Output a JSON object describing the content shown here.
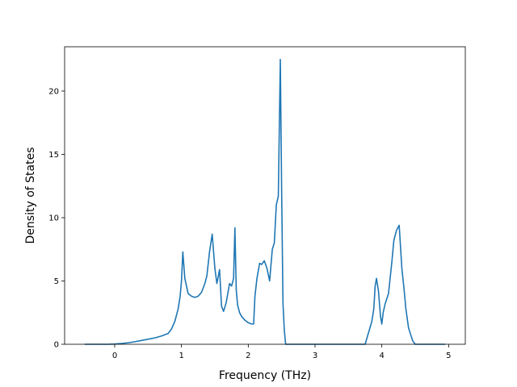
{
  "chart_data": {
    "type": "line",
    "title": "",
    "xlabel": "Frequency (THz)",
    "ylabel": "Density of States",
    "xlim": [
      -0.75,
      5.25
    ],
    "ylim": [
      0,
      23.5
    ],
    "grid": false,
    "legend": "none",
    "xticks": [
      0,
      1,
      2,
      3,
      4,
      5
    ],
    "yticks": [
      0,
      5,
      10,
      15,
      20
    ],
    "xtick_labels": [
      "0",
      "1",
      "2",
      "3",
      "4",
      "5"
    ],
    "ytick_labels": [
      "0",
      "5",
      "10",
      "15",
      "20"
    ],
    "series": [
      {
        "color": "#1f77b4",
        "x": [
          -0.45,
          -0.3,
          -0.1,
          0.0,
          0.1,
          0.2,
          0.3,
          0.4,
          0.5,
          0.6,
          0.7,
          0.8,
          0.85,
          0.9,
          0.95,
          0.98,
          1.0,
          1.02,
          1.05,
          1.1,
          1.15,
          1.2,
          1.25,
          1.3,
          1.35,
          1.38,
          1.42,
          1.46,
          1.5,
          1.53,
          1.57,
          1.6,
          1.63,
          1.67,
          1.72,
          1.75,
          1.78,
          1.8,
          1.82,
          1.84,
          1.87,
          1.9,
          1.95,
          2.0,
          2.05,
          2.08,
          2.1,
          2.13,
          2.17,
          2.2,
          2.24,
          2.28,
          2.32,
          2.36,
          2.39,
          2.42,
          2.45,
          2.48,
          2.5,
          2.52,
          2.54,
          2.56,
          2.58,
          2.6,
          2.7,
          3.0,
          3.5,
          3.75,
          3.8,
          3.85,
          3.88,
          3.9,
          3.92,
          3.95,
          3.98,
          4.0,
          4.02,
          4.05,
          4.1,
          4.15,
          4.18,
          4.22,
          4.26,
          4.3,
          4.33,
          4.36,
          4.4,
          4.43,
          4.46,
          4.5,
          4.55,
          4.7,
          4.95
        ],
        "y": [
          0,
          0,
          0,
          0.02,
          0.06,
          0.12,
          0.2,
          0.3,
          0.4,
          0.5,
          0.65,
          0.85,
          1.2,
          1.8,
          2.8,
          3.8,
          5.0,
          7.3,
          5.2,
          4.0,
          3.8,
          3.7,
          3.8,
          4.1,
          4.8,
          5.4,
          7.3,
          8.7,
          6.0,
          4.8,
          5.9,
          3.0,
          2.6,
          3.3,
          4.8,
          4.6,
          5.2,
          9.2,
          4.3,
          3.1,
          2.5,
          2.2,
          1.9,
          1.7,
          1.6,
          1.6,
          3.8,
          5.2,
          6.4,
          6.3,
          6.6,
          6.0,
          5.0,
          7.5,
          8.0,
          11.0,
          11.7,
          22.5,
          12.0,
          3.2,
          1.1,
          0,
          0,
          0,
          0,
          0,
          0,
          0,
          0.9,
          1.8,
          2.8,
          4.6,
          5.2,
          4.2,
          2.2,
          1.6,
          2.5,
          3.2,
          4.0,
          6.5,
          8.2,
          9.0,
          9.4,
          6.0,
          4.5,
          2.8,
          1.3,
          0.8,
          0.3,
          0,
          0,
          0,
          0
        ]
      }
    ]
  }
}
